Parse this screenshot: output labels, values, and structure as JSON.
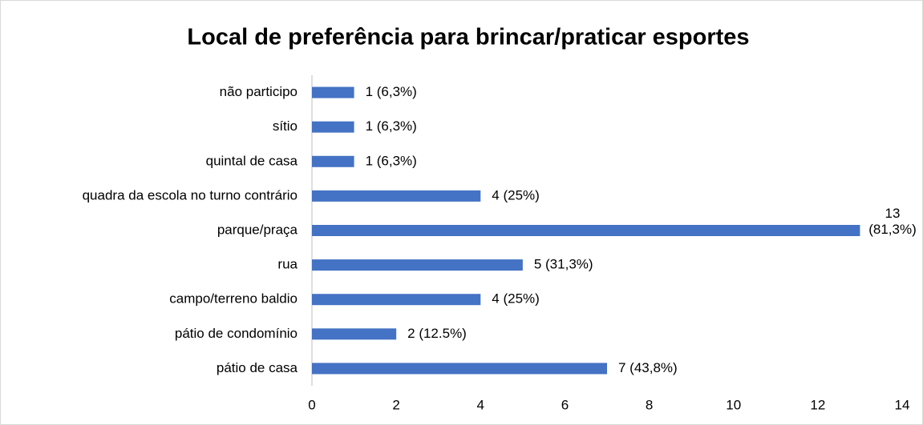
{
  "chart_data": {
    "type": "bar",
    "orientation": "horizontal",
    "title": "Local de preferência para brincar/praticar esportes",
    "categories": [
      "não participo",
      "sítio",
      "quintal de casa",
      "quadra da escola no turno contrário",
      "parque/praça",
      "rua",
      "campo/terreno baldio",
      "pátio de condomínio",
      "pátio de casa"
    ],
    "values": [
      1,
      1,
      1,
      4,
      13,
      5,
      4,
      2,
      7
    ],
    "value_labels": [
      "1 (6,3%)",
      "1 (6,3%)",
      "1 (6,3%)",
      "4 (25%)",
      "13 (81,3%)",
      "5 (31,3%)",
      "4 (25%)",
      "2 (12.5%)",
      "7 (43,8%)"
    ],
    "color": "#4472c4",
    "xlim": [
      0,
      14
    ],
    "xticks": [
      0,
      2,
      4,
      6,
      8,
      10,
      12,
      14
    ],
    "grid": false
  }
}
